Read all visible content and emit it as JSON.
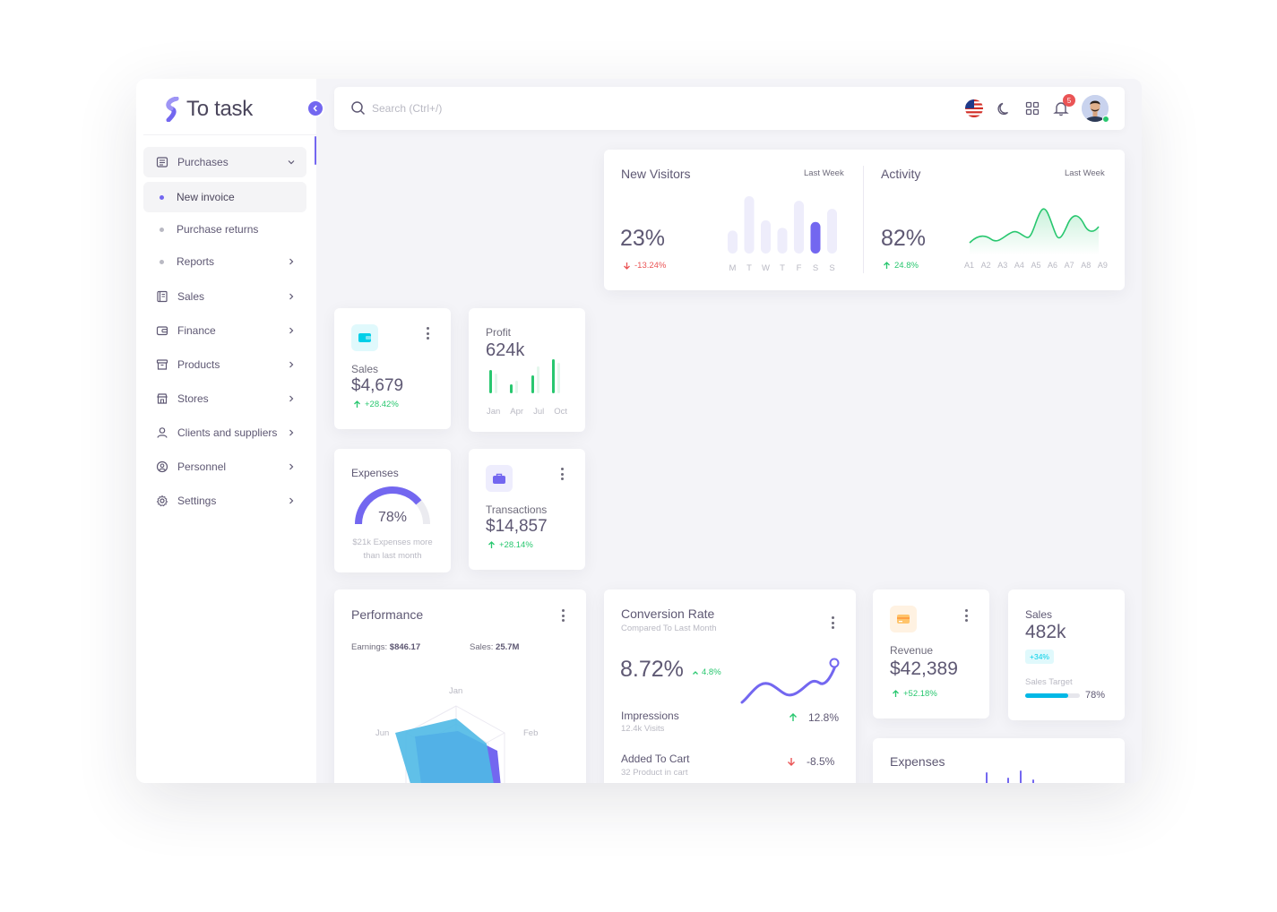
{
  "brand": {
    "title": "To task"
  },
  "search": {
    "placeholder": "Search (Ctrl+/)"
  },
  "topbar": {
    "notification_count": "5"
  },
  "sidebar": {
    "purchases": {
      "label": "Purchases"
    },
    "subitems": [
      {
        "label": "New invoice"
      },
      {
        "label": "Purchase returns"
      },
      {
        "label": "Reports"
      }
    ],
    "items": [
      {
        "label": "Sales"
      },
      {
        "label": "Finance"
      },
      {
        "label": "Products"
      },
      {
        "label": "Stores"
      },
      {
        "label": "Clients and suppliers"
      },
      {
        "label": "Personnel"
      },
      {
        "label": "Settings"
      }
    ]
  },
  "new_visitors": {
    "title": "New Visitors",
    "period": "Last Week",
    "value": "23%",
    "change": "-13.24%",
    "days": [
      "M",
      "T",
      "W",
      "T",
      "F",
      "S",
      "S"
    ],
    "bars": [
      0.4,
      1.0,
      0.58,
      0.45,
      0.92,
      0.55,
      0.78
    ]
  },
  "activity": {
    "title": "Activity",
    "period": "Last Week",
    "value": "82%",
    "change": "24.8%",
    "labels": [
      "A1",
      "A2",
      "A3",
      "A4",
      "A5",
      "A6",
      "A7",
      "A8",
      "A9"
    ]
  },
  "sales_card": {
    "label": "Sales",
    "value": "$4,679",
    "change": "+28.42%"
  },
  "profit": {
    "label": "Profit",
    "value": "624k",
    "months": [
      "Jan",
      "Apr",
      "Jul",
      "Oct"
    ]
  },
  "expenses_small": {
    "label": "Expenses",
    "percent": "78%",
    "note1": "$21k Expenses more",
    "note2": "than last month",
    "level": 0.78
  },
  "transactions": {
    "label": "Transactions",
    "value": "$14,857",
    "change": "+28.14%"
  },
  "performance": {
    "title": "Performance",
    "earnings_label": "Earnings:",
    "earnings_value": "$846.17",
    "sales_label": "Sales:",
    "sales_value": "25.7M",
    "axes": [
      "Jan",
      "Feb",
      "Jun"
    ]
  },
  "conversion": {
    "title": "Conversion Rate",
    "subtitle": "Compared To Last Month",
    "value": "8.72%",
    "change": "4.8%",
    "impressions_label": "Impressions",
    "impressions_sub": "12.4k Visits",
    "impressions_change": "12.8%",
    "cart_label": "Added To Cart",
    "cart_sub": "32 Product in cart",
    "cart_change": "-8.5%"
  },
  "revenue": {
    "label": "Revenue",
    "value": "$42,389",
    "change": "+52.18%"
  },
  "sales_target": {
    "label": "Sales",
    "value": "482k",
    "badge": "+34%",
    "target_label": "Sales Target",
    "target_pct": "78%",
    "level": 0.78
  },
  "expenses_bottom": {
    "title": "Expenses"
  },
  "colors": {
    "primary": "#7367f0",
    "success": "#28c76f",
    "danger": "#ea5455",
    "info": "#00cfe8",
    "warning": "#ff9f43"
  }
}
